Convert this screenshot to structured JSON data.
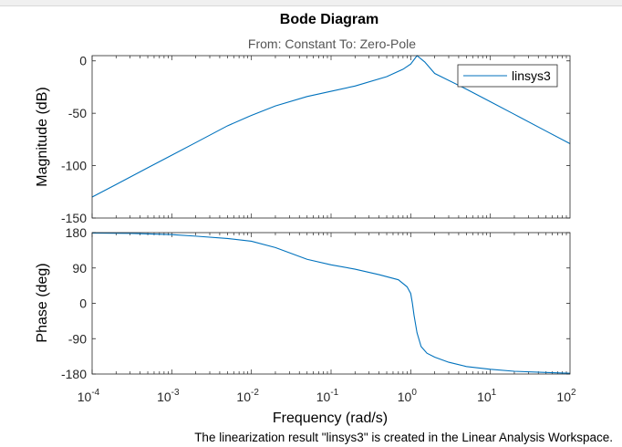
{
  "status_message": "The linearization result \"linsys3\" is created in the Linear Analysis Workspace.",
  "colors": {
    "line": "#0072BD",
    "axes": "#262626",
    "background": "#ffffff"
  },
  "chart_data": {
    "type": "line",
    "title": "Bode Diagram",
    "subtitle": "From: Constant  To: Zero-Pole",
    "xlabel": "Frequency  (rad/s)",
    "xscale": "log",
    "xlim": [
      0.0001,
      100
    ],
    "x_ticks": [
      {
        "value": 0.0001,
        "base": "10",
        "exp": "-4"
      },
      {
        "value": 0.001,
        "base": "10",
        "exp": "-3"
      },
      {
        "value": 0.01,
        "base": "10",
        "exp": "-2"
      },
      {
        "value": 0.1,
        "base": "10",
        "exp": "-1"
      },
      {
        "value": 1,
        "base": "10",
        "exp": "0"
      },
      {
        "value": 10,
        "base": "10",
        "exp": "1"
      },
      {
        "value": 100,
        "base": "10",
        "exp": "2"
      }
    ],
    "legend": {
      "entries": [
        "linsys3"
      ],
      "placement": "top-right"
    },
    "magnitude": {
      "ylabel": "Magnitude (dB)",
      "ylim": [
        -150,
        5
      ],
      "yticks": [
        0,
        -50,
        -100,
        -150
      ],
      "series": [
        {
          "name": "linsys3",
          "x": [
            0.0001,
            0.0002,
            0.0005,
            0.001,
            0.002,
            0.005,
            0.01,
            0.02,
            0.05,
            0.1,
            0.2,
            0.5,
            0.8,
            1.0,
            1.2,
            1.5,
            2,
            5,
            10,
            20,
            50,
            100
          ],
          "y": [
            -130,
            -118,
            -102,
            -90,
            -78,
            -62,
            -52,
            -43,
            -34,
            -29,
            -24,
            -15,
            -8,
            -3,
            5,
            -1,
            -12,
            -27,
            -39,
            -51,
            -67,
            -79
          ]
        }
      ]
    },
    "phase": {
      "ylabel": "Phase (deg)",
      "ylim": [
        -180,
        180
      ],
      "yticks": [
        180,
        90,
        0,
        -90,
        -180
      ],
      "series": [
        {
          "name": "linsys3",
          "x": [
            0.0001,
            0.0003,
            0.001,
            0.002,
            0.005,
            0.01,
            0.02,
            0.05,
            0.1,
            0.2,
            0.4,
            0.7,
            0.9,
            1.0,
            1.05,
            1.1,
            1.2,
            1.35,
            1.6,
            2,
            3,
            5,
            10,
            20,
            50,
            100
          ],
          "y": [
            179,
            178,
            175,
            171,
            165,
            158,
            142,
            112,
            98,
            87,
            73,
            60,
            42,
            25,
            0,
            -30,
            -75,
            -110,
            -127,
            -137,
            -150,
            -161,
            -168,
            -173,
            -176,
            -178
          ]
        }
      ]
    }
  }
}
